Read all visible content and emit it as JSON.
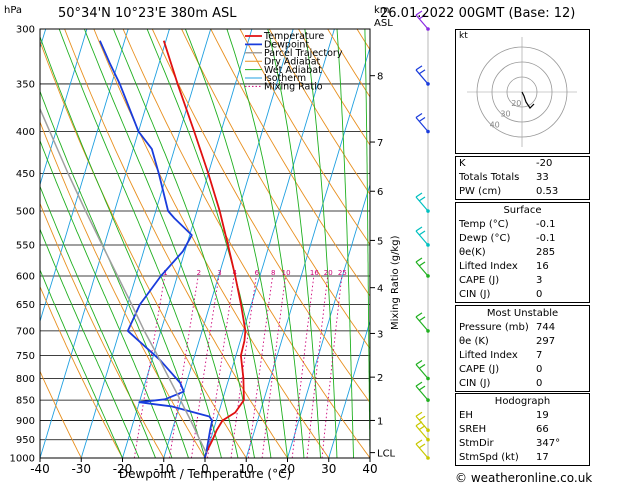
{
  "header": {
    "location": "50°34'N  10°23'E  380m  ASL",
    "datetime": "26.01.2022  00GMT  (Base: 12)",
    "p_unit": "hPa",
    "km_unit": "km",
    "asl_unit": "ASL"
  },
  "chart_data": {
    "type": "line",
    "xlabel": "Dewpoint / Temperature (°C)",
    "ylabel_right": "Mixing Ratio (g/kg)",
    "x_ticks": [
      -40,
      -30,
      -20,
      -10,
      0,
      10,
      20,
      30,
      40
    ],
    "xlim": [
      -40,
      40
    ],
    "ylim": [
      1000,
      300
    ],
    "y_scale": "log",
    "p_ticks": [
      300,
      350,
      400,
      450,
      500,
      550,
      600,
      650,
      700,
      750,
      800,
      850,
      900,
      950,
      1000
    ],
    "skew_per_decade": 60,
    "height_ticks_km": [
      {
        "p": 342,
        "label": "8"
      },
      {
        "p": 412,
        "label": "7"
      },
      {
        "p": 473,
        "label": "6"
      },
      {
        "p": 543,
        "label": "5"
      },
      {
        "p": 620,
        "label": "4"
      },
      {
        "p": 705,
        "label": "3"
      },
      {
        "p": 797,
        "label": "2"
      },
      {
        "p": 900,
        "label": "1"
      },
      {
        "p": 985,
        "label": "LCL"
      }
    ],
    "mixing_ratio_labels": [
      "1",
      "2",
      "3",
      "4",
      "6",
      "8",
      "10",
      "16",
      "20",
      "25"
    ],
    "mixing_ratio_values": [
      1,
      2,
      3,
      4,
      6,
      8,
      10,
      16,
      20,
      25
    ],
    "mixing_label_p": 593,
    "legend": [
      {
        "name": "Temperature",
        "color": "#e01010",
        "style": "solid",
        "width": 1.8
      },
      {
        "name": "Dewpoint",
        "color": "#1a3cdc",
        "style": "solid",
        "width": 1.8
      },
      {
        "name": "Parcel Trajectory",
        "color": "#a0a0a0",
        "style": "solid",
        "width": 1.5
      },
      {
        "name": "Dry Adiabat",
        "color": "#e89020",
        "style": "solid",
        "width": 1
      },
      {
        "name": "Wet Adiabat",
        "color": "#20b020",
        "style": "solid",
        "width": 1
      },
      {
        "name": "Isotherm",
        "color": "#20a0e0",
        "style": "solid",
        "width": 1
      },
      {
        "name": "Mixing Ratio",
        "color": "#cc0077",
        "style": "dotted",
        "width": 1
      }
    ],
    "series": [
      {
        "name": "Temperature",
        "color": "#e01010",
        "points": [
          [
            1000,
            0.0
          ],
          [
            985,
            -0.1
          ],
          [
            950,
            0.5
          ],
          [
            925,
            0.8
          ],
          [
            900,
            1.5
          ],
          [
            880,
            4.0
          ],
          [
            850,
            5.2
          ],
          [
            800,
            3.5
          ],
          [
            750,
            1.2
          ],
          [
            720,
            1.0
          ],
          [
            700,
            0.5
          ],
          [
            650,
            -2.5
          ],
          [
            600,
            -6.0
          ],
          [
            550,
            -10.0
          ],
          [
            500,
            -14.5
          ],
          [
            450,
            -20.0
          ],
          [
            400,
            -26.5
          ],
          [
            350,
            -34.0
          ],
          [
            310,
            -40.5
          ]
        ]
      },
      {
        "name": "Dewpoint",
        "color": "#1a3cdc",
        "points": [
          [
            1000,
            -0.1
          ],
          [
            985,
            -0.1
          ],
          [
            950,
            -0.5
          ],
          [
            925,
            -0.8
          ],
          [
            900,
            -1.0
          ],
          [
            890,
            -2.0
          ],
          [
            865,
            -12.0
          ],
          [
            860,
            -16.0
          ],
          [
            855,
            -20.0
          ],
          [
            848,
            -14.0
          ],
          [
            830,
            -10.0
          ],
          [
            810,
            -11.5
          ],
          [
            760,
            -18.0
          ],
          [
            700,
            -28.0
          ],
          [
            650,
            -27.0
          ],
          [
            600,
            -24.0
          ],
          [
            560,
            -20.5
          ],
          [
            535,
            -19.5
          ],
          [
            510,
            -25.0
          ],
          [
            500,
            -27.0
          ],
          [
            450,
            -32.0
          ],
          [
            420,
            -35.5
          ],
          [
            400,
            -40.0
          ],
          [
            350,
            -48.0
          ],
          [
            330,
            -52.0
          ],
          [
            310,
            -56.0
          ]
        ]
      },
      {
        "name": "Parcel Trajectory",
        "color": "#a0a0a0",
        "points": [
          [
            985,
            -0.1
          ],
          [
            950,
            -2.6
          ],
          [
            900,
            -6.2
          ],
          [
            850,
            -10.2
          ],
          [
            800,
            -14.5
          ],
          [
            750,
            -19.0
          ],
          [
            700,
            -24.0
          ],
          [
            650,
            -29.0
          ],
          [
            600,
            -34.5
          ],
          [
            550,
            -40.5
          ],
          [
            500,
            -47.0
          ],
          [
            450,
            -54.0
          ],
          [
            400,
            -61.5
          ],
          [
            350,
            -70.0
          ],
          [
            300,
            -79.0
          ]
        ]
      }
    ]
  },
  "hodograph": {
    "unit": "kt",
    "ring_labels": [
      "20",
      "30",
      "40"
    ],
    "points": [
      [
        0,
        0
      ],
      [
        2,
        -4
      ],
      [
        4,
        -10
      ],
      [
        8,
        -16
      ],
      [
        12,
        -12
      ]
    ]
  },
  "indices": [
    {
      "k": "K",
      "v": "-20"
    },
    {
      "k": "Totals Totals",
      "v": "33"
    },
    {
      "k": "PW (cm)",
      "v": "0.53"
    }
  ],
  "surface": {
    "title": "Surface",
    "rows": [
      {
        "k": "Temp (°C)",
        "v": "-0.1"
      },
      {
        "k": "Dewp (°C)",
        "v": "-0.1"
      },
      {
        "k": "θe(K)",
        "v": "285"
      },
      {
        "k": "Lifted Index",
        "v": "16"
      },
      {
        "k": "CAPE (J)",
        "v": "3"
      },
      {
        "k": "CIN (J)",
        "v": "0"
      }
    ]
  },
  "most_unstable": {
    "title": "Most Unstable",
    "rows": [
      {
        "k": "Pressure (mb)",
        "v": "744"
      },
      {
        "k": "θe (K)",
        "v": "297"
      },
      {
        "k": "Lifted Index",
        "v": "7"
      },
      {
        "k": "CAPE (J)",
        "v": "0"
      },
      {
        "k": "CIN (J)",
        "v": "0"
      }
    ]
  },
  "hodograph_table": {
    "title": "Hodograph",
    "rows": [
      {
        "k": "EH",
        "v": "19"
      },
      {
        "k": "SREH",
        "v": "66"
      },
      {
        "k": "StmDir",
        "v": "347°"
      },
      {
        "k": "StmSpd (kt)",
        "v": "17"
      }
    ]
  },
  "footer": "© weatheronline.co.uk",
  "wind_barbs": [
    {
      "p": 300,
      "color": "#8a2be2"
    },
    {
      "p": 350,
      "color": "#1a3cdc"
    },
    {
      "p": 400,
      "color": "#1a3cdc"
    },
    {
      "p": 500,
      "color": "#00c0c0"
    },
    {
      "p": 550,
      "color": "#00c0c0"
    },
    {
      "p": 600,
      "color": "#20b020"
    },
    {
      "p": 700,
      "color": "#20b020"
    },
    {
      "p": 800,
      "color": "#20b020"
    },
    {
      "p": 850,
      "color": "#20b020"
    },
    {
      "p": 925,
      "color": "#c8c800"
    },
    {
      "p": 950,
      "color": "#c8c800"
    },
    {
      "p": 1000,
      "color": "#c8c800"
    }
  ],
  "colors": {
    "isotherm": "#20a0e0",
    "dry_adiabat": "#e89020",
    "wet_adiabat": "#20b020",
    "mixing_ratio": "#cc0077"
  }
}
